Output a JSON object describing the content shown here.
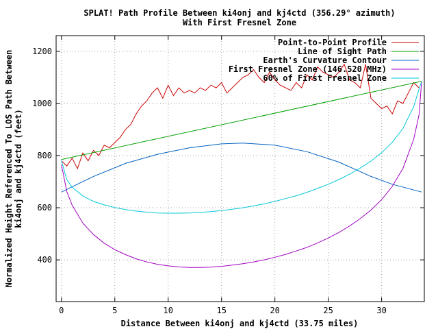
{
  "chart_data": {
    "type": "line",
    "title": "SPLAT! Path Profile Between ki4onj and kj4ctd (356.29° azimuth)",
    "subtitle": "With First Fresnel Zone",
    "xlabel": "Distance Between ki4onj and kj4ctd (33.75 miles)",
    "ylabel": "Normalized Height Referenced To LOS Path Between",
    "ylabel2": "ki4onj and kj4ctd (feet)",
    "xlim": [
      -0.5,
      34
    ],
    "ylim": [
      240,
      1260
    ],
    "x_ticks": [
      0,
      5,
      10,
      15,
      20,
      25,
      30
    ],
    "y_ticks": [
      400,
      600,
      800,
      1000,
      1200
    ],
    "grid": true,
    "legend_position": "top-right",
    "series": [
      {
        "name": "Point-to-Point Profile",
        "color": "#cc0000",
        "x": [
          0,
          0.5,
          1,
          1.5,
          2,
          2.5,
          3,
          3.5,
          4,
          4.5,
          5,
          5.5,
          6,
          6.5,
          7,
          7.5,
          8,
          8.5,
          9,
          9.5,
          10,
          10.5,
          11,
          11.5,
          12,
          12.5,
          13,
          13.5,
          14,
          14.5,
          15,
          15.5,
          16,
          16.5,
          17,
          17.5,
          18,
          18.5,
          19,
          19.5,
          20,
          20.5,
          21,
          21.5,
          22,
          22.5,
          23,
          23.5,
          24,
          24.5,
          25,
          25.5,
          26,
          26.5,
          27,
          27.5,
          28,
          28.5,
          29,
          29.5,
          30,
          30.5,
          31,
          31.5,
          32,
          32.5,
          33,
          33.5
        ],
        "y": [
          780,
          760,
          790,
          750,
          810,
          780,
          820,
          800,
          840,
          830,
          850,
          870,
          900,
          920,
          960,
          990,
          1010,
          1040,
          1060,
          1020,
          1070,
          1030,
          1060,
          1040,
          1050,
          1040,
          1060,
          1050,
          1070,
          1060,
          1080,
          1040,
          1060,
          1080,
          1100,
          1110,
          1130,
          1100,
          1080,
          1120,
          1090,
          1070,
          1060,
          1050,
          1080,
          1060,
          1110,
          1090,
          1140,
          1120,
          1110,
          1100,
          1120,
          1150,
          1090,
          1080,
          1060,
          1150,
          1020,
          1000,
          980,
          990,
          960,
          1010,
          1000,
          1040,
          1080,
          1060
        ]
      },
      {
        "name": "Line of Sight Path",
        "color": "#00a000",
        "x": [
          0,
          33.75
        ],
        "y": [
          785,
          1085
        ]
      },
      {
        "name": "Earth's Curvature Contour",
        "color": "#0060c0",
        "x": [
          0,
          3,
          6,
          9,
          12,
          15,
          17,
          20,
          23,
          26,
          29,
          31,
          33.75
        ],
        "y": [
          660,
          720,
          770,
          805,
          830,
          845,
          848,
          840,
          815,
          775,
          720,
          690,
          660
        ]
      },
      {
        "name": "First Fresnel Zone (146.520 MHz)",
        "color": "#a000c0",
        "x": [
          0,
          0.5,
          1,
          2,
          3,
          4,
          5,
          6,
          7,
          8,
          9,
          10,
          11,
          12,
          13,
          14,
          15,
          16,
          17,
          18,
          19,
          20,
          21,
          22,
          23,
          24,
          25,
          26,
          27,
          28,
          29,
          30,
          31,
          32,
          33,
          33.5,
          33.75
        ],
        "y": [
          765,
          662,
          610,
          541,
          497,
          464,
          439,
          420,
          404,
          392,
          383,
          377,
          373,
          371,
          371,
          372,
          375,
          380,
          385,
          392,
          400,
          410,
          421,
          434,
          448,
          465,
          484,
          505,
          530,
          558,
          591,
          631,
          682,
          751,
          862,
          955,
          1084
        ]
      },
      {
        "name": "60% of First Fresnel Zone",
        "color": "#00c8d8",
        "x": [
          0,
          0.5,
          1,
          2,
          3,
          4,
          5,
          6,
          7,
          8,
          9,
          10,
          11,
          12,
          13,
          14,
          15,
          16,
          17,
          18,
          19,
          20,
          21,
          22,
          23,
          24,
          25,
          26,
          27,
          28,
          29,
          30,
          31,
          32,
          33,
          33.5,
          33.75
        ],
        "y": [
          781,
          708,
          679,
          645,
          624,
          611,
          601,
          593,
          587,
          583,
          580,
          579,
          579,
          580,
          582,
          585,
          589,
          594,
          600,
          607,
          615,
          624,
          635,
          646,
          659,
          674,
          690,
          708,
          729,
          752,
          779,
          811,
          851,
          904,
          987,
          1054,
          1084
        ]
      }
    ]
  }
}
